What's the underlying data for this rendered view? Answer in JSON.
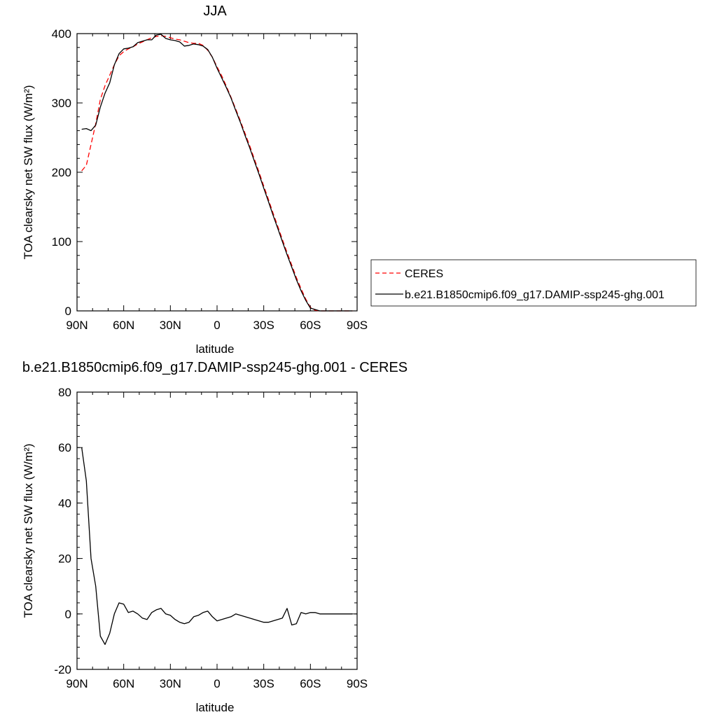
{
  "chart_data": [
    {
      "type": "line",
      "title": "JJA",
      "xlabel": "latitude",
      "ylabel": "TOA clearsky net SW flux (W/m²)",
      "xlim": [
        90,
        -90
      ],
      "ylim": [
        0,
        400
      ],
      "x_ticks": [
        90,
        60,
        30,
        0,
        -30,
        -60,
        -90
      ],
      "x_tick_labels": [
        "90N",
        "60N",
        "30N",
        "0",
        "30S",
        "60S",
        "90S"
      ],
      "y_ticks": [
        0,
        100,
        200,
        300,
        400
      ],
      "y_tick_labels": [
        "0",
        "100",
        "200",
        "300",
        "400"
      ],
      "legend": "right",
      "series": [
        {
          "name": "CERES",
          "color": "#ff0000",
          "style": "dashed",
          "x": [
            87,
            84,
            81,
            78,
            75,
            72,
            69,
            66,
            63,
            60,
            57,
            54,
            51,
            48,
            45,
            42,
            39,
            36,
            33,
            30,
            27,
            24,
            21,
            18,
            15,
            12,
            9,
            6,
            3,
            0,
            -3,
            -6,
            -9,
            -12,
            -15,
            -18,
            -21,
            -24,
            -27,
            -30,
            -33,
            -36,
            -39,
            -42,
            -45,
            -48,
            -51,
            -54,
            -57,
            -60,
            -63,
            -66,
            -69,
            -72,
            -75,
            -78,
            -81,
            -84,
            -87
          ],
          "y": [
            202,
            210,
            240,
            270,
            305,
            325,
            340,
            355,
            368,
            374,
            378,
            381,
            385,
            388,
            391,
            394,
            396,
            397,
            396,
            394,
            392,
            391,
            389,
            387,
            386,
            386,
            383,
            376,
            366,
            352,
            339,
            324,
            308,
            291,
            274,
            256,
            238,
            219,
            200,
            180,
            161,
            141,
            122,
            103,
            84,
            66,
            48,
            32,
            17,
            5,
            1,
            0,
            0,
            0,
            0,
            0,
            0,
            0,
            0
          ]
        },
        {
          "name": "b.e21.B1850cmip6.f09_g17.DAMIP-ssp245-ghg.001",
          "color": "#000000",
          "style": "solid",
          "x": [
            87,
            84,
            81,
            78,
            75,
            72,
            69,
            66,
            63,
            60,
            57,
            54,
            51,
            48,
            45,
            42,
            39,
            36,
            33,
            30,
            27,
            24,
            21,
            18,
            15,
            12,
            9,
            6,
            3,
            0,
            -3,
            -6,
            -9,
            -12,
            -15,
            -18,
            -21,
            -24,
            -27,
            -30,
            -33,
            -36,
            -39,
            -42,
            -45,
            -48,
            -51,
            -54,
            -57,
            -60,
            -63,
            -66,
            -69,
            -72,
            -75,
            -78,
            -81,
            -84,
            -87
          ],
          "y": [
            262,
            263,
            260,
            268,
            294,
            314,
            329,
            355,
            371,
            378,
            379,
            381,
            387,
            389,
            391,
            391,
            398,
            399,
            393,
            391,
            390,
            388,
            382,
            383,
            385,
            384,
            382,
            377,
            366,
            350,
            336,
            322,
            307,
            289,
            272,
            253,
            235,
            216,
            197,
            177,
            158,
            138,
            119,
            100,
            81,
            63,
            45,
            29,
            15,
            4,
            2,
            0,
            0,
            0,
            0,
            0,
            0,
            0,
            0
          ]
        }
      ]
    },
    {
      "type": "line",
      "title": "b.e21.B1850cmip6.f09_g17.DAMIP-ssp245-ghg.001 - CERES",
      "xlabel": "latitude",
      "ylabel": "TOA clearsky net SW flux (W/m²)",
      "xlim": [
        90,
        -90
      ],
      "ylim": [
        -20,
        80
      ],
      "x_ticks": [
        90,
        60,
        30,
        0,
        -30,
        -60,
        -90
      ],
      "x_tick_labels": [
        "90N",
        "60N",
        "30N",
        "0",
        "30S",
        "60S",
        "90S"
      ],
      "y_ticks": [
        -20,
        0,
        20,
        40,
        60,
        80
      ],
      "y_tick_labels": [
        "-20",
        "0",
        "20",
        "40",
        "60",
        "80"
      ],
      "series": [
        {
          "color": "#000000",
          "style": "solid",
          "x": [
            87,
            84,
            81,
            78,
            75,
            72,
            69,
            66,
            63,
            60,
            57,
            54,
            51,
            48,
            45,
            42,
            39,
            36,
            33,
            30,
            27,
            24,
            21,
            18,
            15,
            12,
            9,
            6,
            3,
            0,
            -3,
            -6,
            -9,
            -12,
            -15,
            -18,
            -21,
            -24,
            -27,
            -30,
            -33,
            -36,
            -39,
            -42,
            -45,
            -48,
            -51,
            -54,
            -57,
            -60,
            -63,
            -66,
            -69,
            -72,
            -75,
            -78,
            -81,
            -84,
            -87
          ],
          "y": [
            60,
            48,
            20,
            10,
            -8,
            -11,
            -7,
            0,
            4,
            3.5,
            0.5,
            1,
            0,
            -1.5,
            -2,
            0.5,
            1.5,
            2,
            0,
            -0.5,
            -2,
            -3,
            -3.5,
            -3,
            -1,
            -0.5,
            0.5,
            1,
            -1,
            -2.5,
            -2,
            -1.5,
            -1,
            0,
            -0.5,
            -1,
            -1.5,
            -2,
            -2.5,
            -3,
            -3,
            -2.5,
            -2,
            -1.5,
            2,
            -4,
            -3.5,
            0.5,
            0,
            0.5,
            0.5,
            0,
            0,
            0,
            0,
            0,
            0,
            0,
            0
          ]
        }
      ]
    }
  ]
}
